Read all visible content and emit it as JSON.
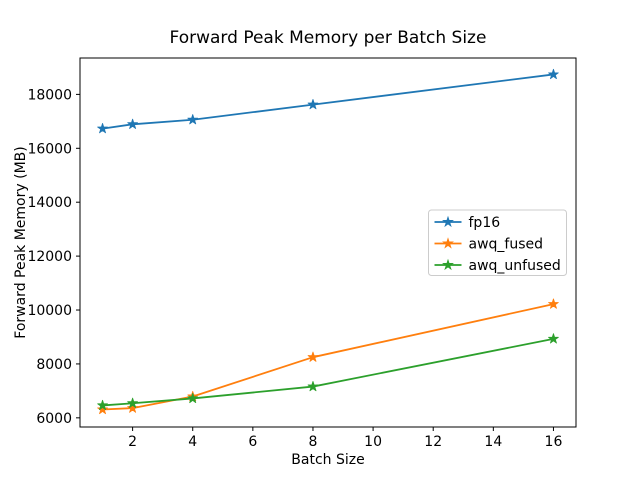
{
  "figure": {
    "background": "#ffffff",
    "frame_color": "#000000"
  },
  "chart_data": {
    "type": "line",
    "title": "Forward Peak Memory per Batch Size",
    "xlabel": "Batch Size",
    "ylabel": "Forward Peak Memory (MB)",
    "x": [
      1,
      2,
      4,
      8,
      16
    ],
    "series": [
      {
        "name": "fp16",
        "color": "#1f77b4",
        "marker": "star",
        "values": [
          16730,
          16890,
          17060,
          17620,
          18740
        ]
      },
      {
        "name": "awq_fused",
        "color": "#ff7f0e",
        "marker": "star",
        "values": [
          6310,
          6360,
          6790,
          8250,
          10220
        ]
      },
      {
        "name": "awq_unfused",
        "color": "#2ca02c",
        "marker": "star",
        "values": [
          6460,
          6540,
          6720,
          7160,
          8930
        ]
      }
    ],
    "xticks": [
      2,
      4,
      6,
      8,
      10,
      12,
      14,
      16
    ],
    "yticks": [
      6000,
      8000,
      10000,
      12000,
      14000,
      16000,
      18000
    ],
    "xlim": [
      0.25,
      16.75
    ],
    "ylim": [
      5660,
      19350
    ],
    "grid": false,
    "legend": {
      "position": "center right",
      "entries": [
        "fp16",
        "awq_fused",
        "awq_unfused"
      ],
      "border_color": "#cccccc",
      "background": "#ffffff"
    }
  }
}
